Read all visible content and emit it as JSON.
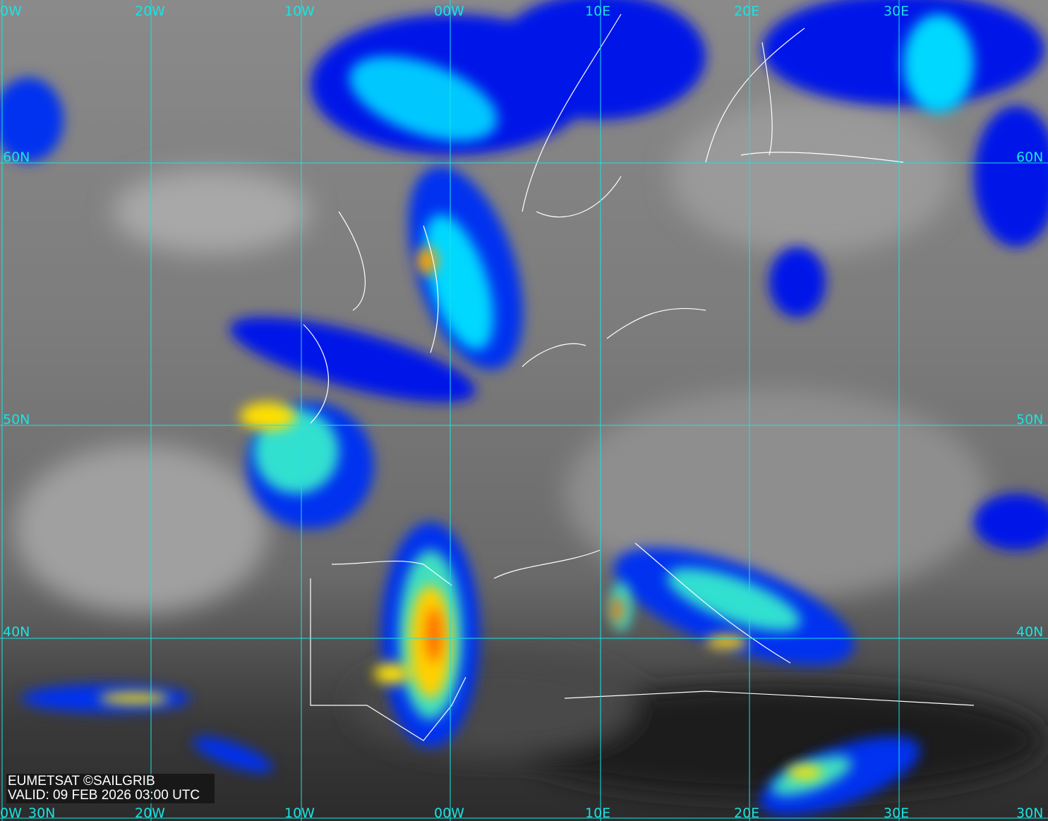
{
  "map": {
    "credit": "EUMETSAT ©SAILGRIB",
    "valid": "VALID:  09 FEB 2026 03:00 UTC",
    "colors": {
      "grid": "#19e3e3",
      "coast": "#ffffff",
      "cold_cloud": "#0010e0",
      "mid_cloud": "#00d8ff",
      "high_cloud": "#ffe000",
      "top_cloud": "#ff3000"
    },
    "longitude_labels": [
      "0W",
      "20W",
      "10W",
      "00W",
      "10E",
      "20E",
      "30E"
    ],
    "bottom_longitude_labels": [
      "0W",
      "20W",
      "10W",
      "00W",
      "10E",
      "20E",
      "30E"
    ],
    "latitude_labels_left": [
      "60N",
      "50N",
      "40N",
      "30N"
    ],
    "latitude_labels_right": [
      "60N",
      "50N",
      "40N",
      "30N"
    ]
  }
}
